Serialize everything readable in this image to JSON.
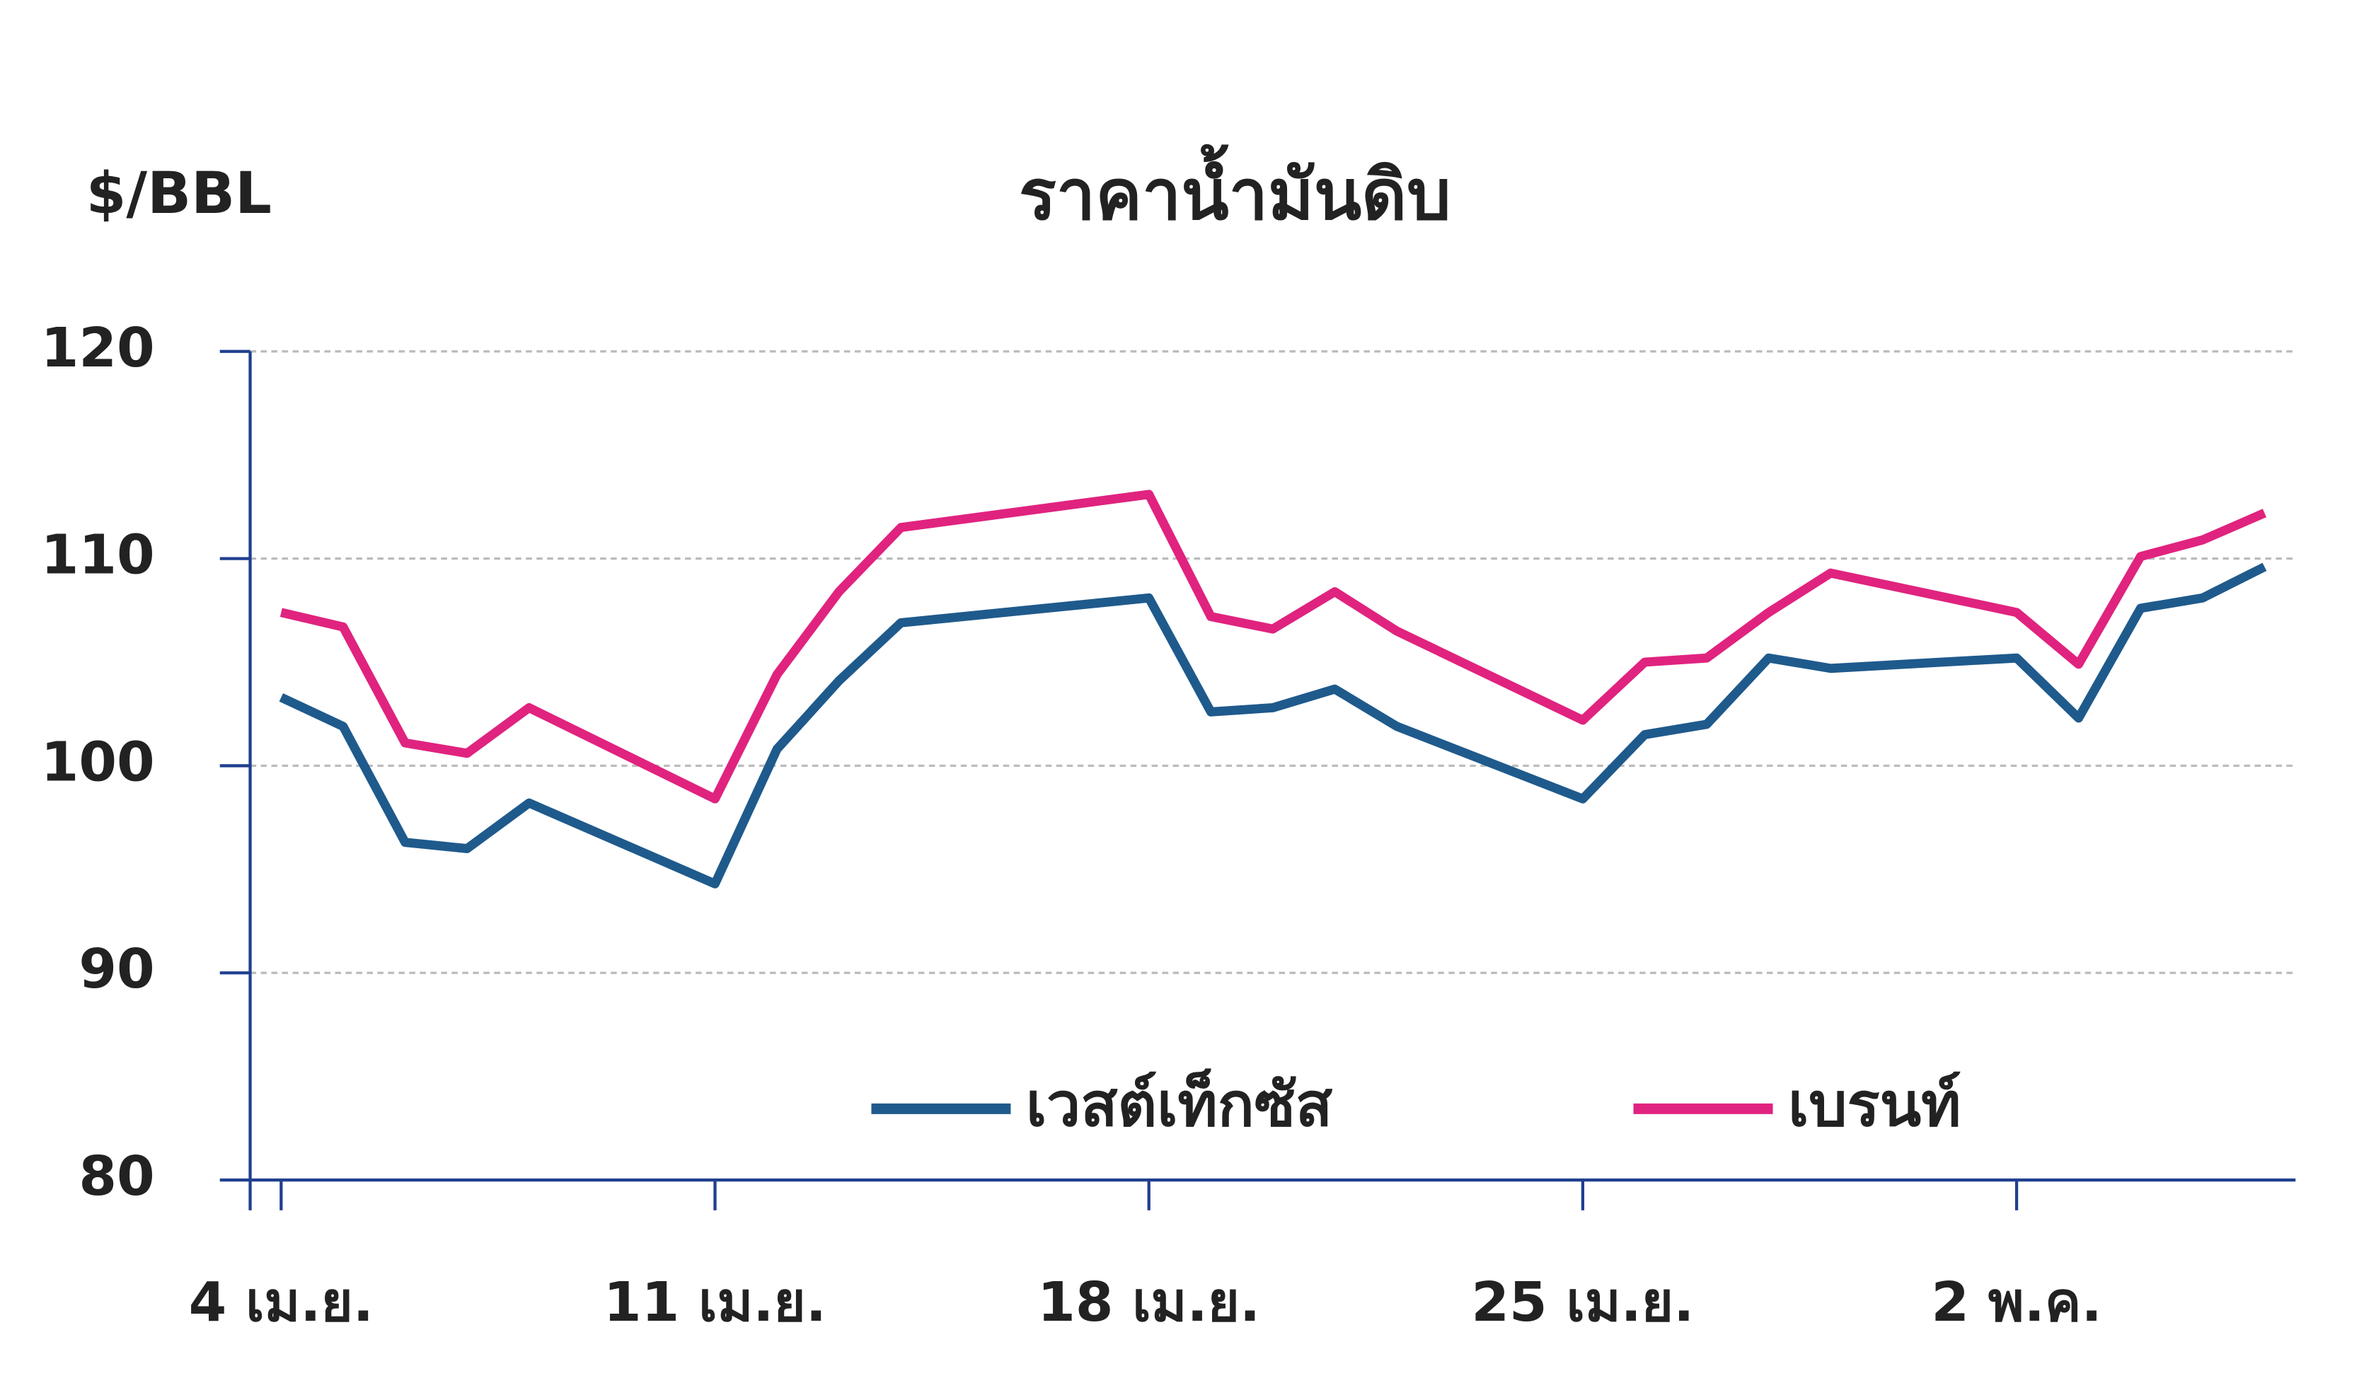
{
  "chart_data": {
    "type": "line",
    "title": "ราคาน้ำมันดิบ",
    "y_label": "$/BBL",
    "x": [
      0,
      1,
      2,
      3,
      4,
      7,
      8,
      9,
      10,
      14,
      15,
      16,
      17,
      18,
      21,
      22,
      23,
      24,
      25,
      28,
      29,
      30,
      31,
      32
    ],
    "xlim": [
      -0.5,
      32.5
    ],
    "xticks": [
      {
        "value": 0,
        "label": "4 เม.ย."
      },
      {
        "value": 7,
        "label": "11 เม.ย."
      },
      {
        "value": 14,
        "label": "18 เม.ย."
      },
      {
        "value": 21,
        "label": "25 เม.ย."
      },
      {
        "value": 28,
        "label": "2 พ.ค."
      }
    ],
    "ylim": [
      80,
      120
    ],
    "yticks": [
      80,
      90,
      100,
      110,
      120
    ],
    "grid": true,
    "legend": "bottom",
    "series": [
      {
        "name": "เวสต์เท็กซัส",
        "color": "#1f5a8c",
        "values": [
          103.3,
          101.9,
          96.3,
          96.0,
          98.2,
          94.3,
          100.8,
          104.1,
          106.9,
          108.1,
          102.6,
          102.8,
          103.7,
          101.9,
          98.4,
          101.5,
          102.0,
          105.2,
          104.7,
          105.2,
          102.3,
          107.6,
          108.1,
          109.6
        ]
      },
      {
        "name": "เบรนท์",
        "color": "#e0237f",
        "values": [
          107.4,
          106.7,
          101.1,
          100.6,
          102.8,
          98.4,
          104.4,
          108.4,
          111.5,
          113.1,
          107.2,
          106.6,
          108.4,
          106.5,
          102.2,
          105.0,
          105.2,
          107.4,
          109.3,
          107.4,
          104.9,
          110.1,
          110.9,
          112.2
        ]
      }
    ]
  }
}
